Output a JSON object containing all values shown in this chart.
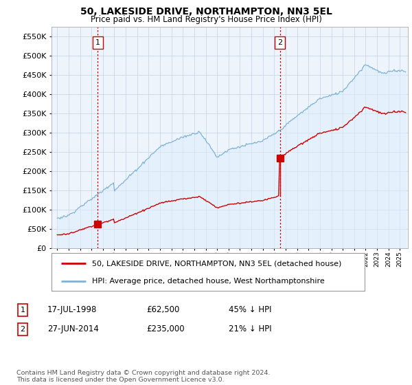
{
  "title": "50, LAKESIDE DRIVE, NORTHAMPTON, NN3 5EL",
  "subtitle": "Price paid vs. HM Land Registry's House Price Index (HPI)",
  "legend_line1": "50, LAKESIDE DRIVE, NORTHAMPTON, NN3 5EL (detached house)",
  "legend_line2": "HPI: Average price, detached house, West Northamptonshire",
  "annotation1_date": "17-JUL-1998",
  "annotation1_price": "£62,500",
  "annotation1_hpi": "45% ↓ HPI",
  "annotation2_date": "27-JUN-2014",
  "annotation2_price": "£235,000",
  "annotation2_hpi": "21% ↓ HPI",
  "footnote": "Contains HM Land Registry data © Crown copyright and database right 2024.\nThis data is licensed under the Open Government Licence v3.0.",
  "sale1_year": 1998.54,
  "sale1_price": 62500,
  "sale2_year": 2014.49,
  "sale2_price": 235000,
  "hpi_color": "#7fb3d3",
  "hpi_fill_color": "#ddeeff",
  "price_color": "#cc0000",
  "dashed_color": "#cc0000",
  "background_color": "#ffffff",
  "plot_bg_color": "#eef4fb",
  "grid_color": "#c8d8e8",
  "ylim_max": 575000,
  "xlim_start": 1994.5,
  "xlim_end": 2025.7
}
